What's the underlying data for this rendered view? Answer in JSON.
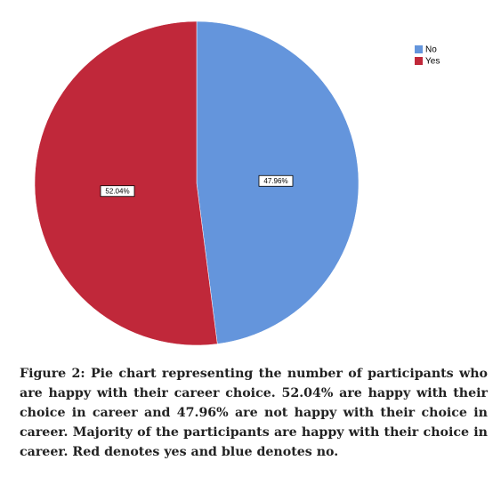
{
  "chart_data": {
    "type": "pie",
    "categories": [
      "No",
      "Yes"
    ],
    "values": [
      47.96,
      52.04
    ],
    "value_labels": [
      "47.96%",
      "52.04%"
    ],
    "colors": [
      "#6495dc",
      "#c0283a"
    ],
    "legend": "top-right",
    "caption": "Figure 2: Pie chart representing the number of participants who are happy with their career choice. 52.04% are happy with their choice in career and 47.96% are not happy with their choice in career. Majority of the participants are happy with their choice in career. Red denotes yes and blue denotes no."
  }
}
